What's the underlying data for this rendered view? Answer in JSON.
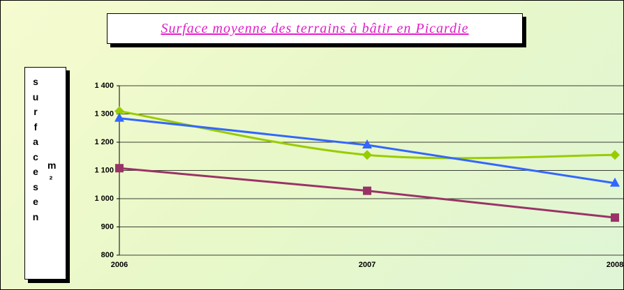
{
  "chart_data": {
    "type": "line",
    "title": "Surface moyenne des terrains à bâtir en Picardie",
    "ylabel": "surfaces en",
    "ylabel_unit": "m²",
    "categories": [
      "2006",
      "2007",
      "2008"
    ],
    "series": [
      {
        "color": "#99cc00",
        "marker": "diamond",
        "smooth": true,
        "values": [
          1310,
          1155,
          1155
        ]
      },
      {
        "color": "#3366ff",
        "marker": "triangle",
        "smooth": false,
        "values": [
          1285,
          1190,
          1055
        ]
      },
      {
        "color": "#993366",
        "marker": "square",
        "smooth": false,
        "values": [
          1108,
          1028,
          933
        ]
      }
    ],
    "ylim": [
      800,
      1400
    ],
    "yticks": [
      {
        "value": 1400,
        "label": "1 400"
      },
      {
        "value": 1300,
        "label": "1 300"
      },
      {
        "value": 1200,
        "label": "1 200"
      },
      {
        "value": 1100,
        "label": "1 100"
      },
      {
        "value": 1000,
        "label": "1 000"
      },
      900,
      800
    ],
    "grid": true
  }
}
